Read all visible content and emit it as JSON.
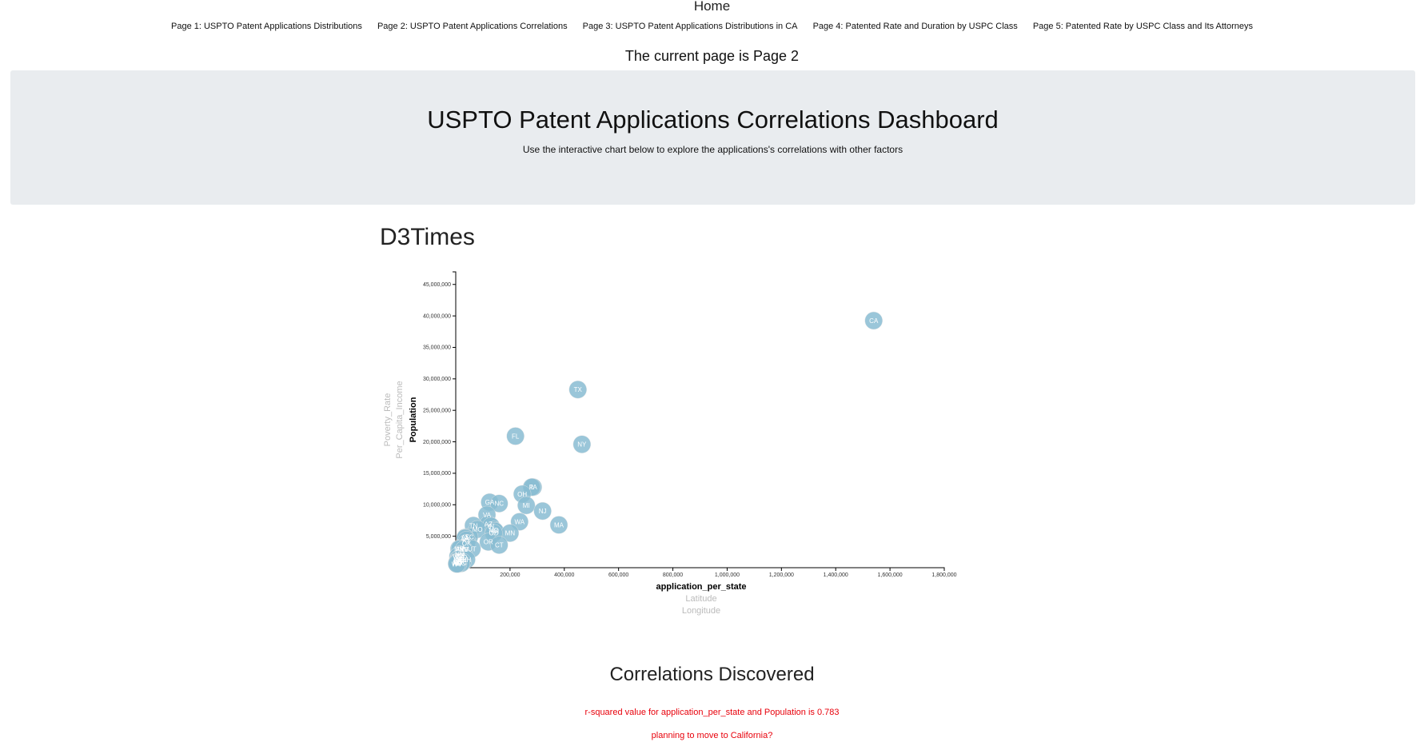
{
  "nav": {
    "home": "Home",
    "pages": [
      "Page 1: USPTO Patent Applications Distributions",
      "Page 2: USPTO Patent Applications Correlations",
      "Page 3: USPTO Patent Applications Distributions in CA",
      "Page 4: Patented Rate and Duration by USPC Class",
      "Page 5: Patented Rate by USPC Class and Its Attorneys"
    ],
    "current": "The current page is Page 2"
  },
  "header": {
    "title": "USPTO Patent Applications Correlations Dashboard",
    "subtitle": "Use the interactive chart below to explore the applications's correlations with other factors"
  },
  "chart_heading": "D3Times",
  "chart_data": {
    "type": "scatter",
    "x_label": "application_per_state",
    "x_label_options": [
      "Latitude",
      "Longitude"
    ],
    "y_label": "Population",
    "y_label_options": [
      "Per_Capita_Income",
      "Poverty_Rate"
    ],
    "xlim": [
      0,
      1800000
    ],
    "ylim": [
      0,
      47000000
    ],
    "x_ticks": [
      "200,000",
      "400,000",
      "600,000",
      "800,000",
      "1,000,000",
      "1,200,000",
      "1,400,000",
      "1,600,000",
      "1,800,000"
    ],
    "y_ticks": [
      "5,000,000",
      "10,000,000",
      "15,000,000",
      "20,000,000",
      "25,000,000",
      "30,000,000",
      "35,000,000",
      "40,000,000",
      "45,000,000"
    ],
    "points": [
      {
        "label": "CA",
        "x": 1540000,
        "y": 39250000
      },
      {
        "label": "TX",
        "x": 450000,
        "y": 28300000
      },
      {
        "label": "FL",
        "x": 220000,
        "y": 20900000
      },
      {
        "label": "NY",
        "x": 465000,
        "y": 19600000
      },
      {
        "label": "PA",
        "x": 285000,
        "y": 12800000
      },
      {
        "label": "IL",
        "x": 280000,
        "y": 12800000
      },
      {
        "label": "OH",
        "x": 245000,
        "y": 11700000
      },
      {
        "label": "GA",
        "x": 125000,
        "y": 10400000
      },
      {
        "label": "NC",
        "x": 160000,
        "y": 10200000
      },
      {
        "label": "MI",
        "x": 260000,
        "y": 9900000
      },
      {
        "label": "NJ",
        "x": 320000,
        "y": 9000000
      },
      {
        "label": "VA",
        "x": 115000,
        "y": 8400000
      },
      {
        "label": "WA",
        "x": 235000,
        "y": 7300000
      },
      {
        "label": "AZ",
        "x": 120000,
        "y": 6900000
      },
      {
        "label": "MA",
        "x": 380000,
        "y": 6800000
      },
      {
        "label": "TN",
        "x": 65000,
        "y": 6700000
      },
      {
        "label": "IN",
        "x": 130000,
        "y": 6600000
      },
      {
        "label": "MO",
        "x": 80000,
        "y": 6100000
      },
      {
        "label": "MD",
        "x": 140000,
        "y": 6000000
      },
      {
        "label": "WI",
        "x": 145000,
        "y": 5800000
      },
      {
        "label": "MN",
        "x": 200000,
        "y": 5500000
      },
      {
        "label": "CO",
        "x": 140000,
        "y": 5500000
      },
      {
        "label": "SC",
        "x": 50000,
        "y": 4900000
      },
      {
        "label": "AL",
        "x": 35000,
        "y": 4800000
      },
      {
        "label": "LA",
        "x": 35000,
        "y": 4700000
      },
      {
        "label": "KY",
        "x": 40000,
        "y": 4400000
      },
      {
        "label": "OR",
        "x": 120000,
        "y": 4100000
      },
      {
        "label": "OK",
        "x": 40000,
        "y": 3900000
      },
      {
        "label": "CT",
        "x": 160000,
        "y": 3600000
      },
      {
        "label": "IA",
        "x": 25000,
        "y": 3100000
      },
      {
        "label": "UT",
        "x": 60000,
        "y": 3000000
      },
      {
        "label": "MS",
        "x": 12000,
        "y": 3000000
      },
      {
        "label": "AR",
        "x": 15000,
        "y": 3000000
      },
      {
        "label": "KS",
        "x": 30000,
        "y": 2900000
      },
      {
        "label": "NV",
        "x": 30000,
        "y": 2900000
      },
      {
        "label": "NM",
        "x": 15000,
        "y": 2100000
      },
      {
        "label": "NE",
        "x": 18000,
        "y": 1900000
      },
      {
        "label": "WV",
        "x": 8000,
        "y": 1800000
      },
      {
        "label": "ID",
        "x": 30000,
        "y": 1700000
      },
      {
        "label": "HI",
        "x": 10000,
        "y": 1400000
      },
      {
        "label": "NH",
        "x": 40000,
        "y": 1300000
      },
      {
        "label": "ME",
        "x": 10000,
        "y": 1300000
      },
      {
        "label": "RI",
        "x": 18000,
        "y": 1050000
      },
      {
        "label": "MT",
        "x": 8000,
        "y": 1000000
      },
      {
        "label": "DE",
        "x": 25000,
        "y": 950000
      },
      {
        "label": "SD",
        "x": 6000,
        "y": 860000
      },
      {
        "label": "ND",
        "x": 6000,
        "y": 760000
      },
      {
        "label": "AK",
        "x": 4000,
        "y": 740000
      },
      {
        "label": "DC",
        "x": 20000,
        "y": 680000
      },
      {
        "label": "VT",
        "x": 9000,
        "y": 620000
      },
      {
        "label": "WY",
        "x": 4000,
        "y": 585000
      }
    ],
    "colors": {
      "point": "#89bdd3",
      "label": "#ffffff"
    }
  },
  "correlations": {
    "heading": "Correlations Discovered",
    "lines": [
      "r-squared value for application_per_state and Population is 0.783",
      "planning to move to California?"
    ]
  }
}
